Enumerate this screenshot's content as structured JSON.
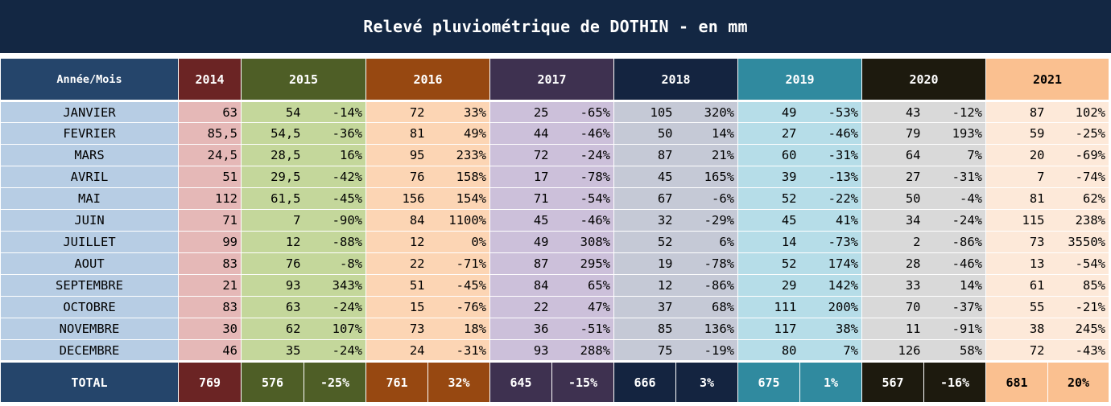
{
  "title": "Relevé pluviométrique de DOTHIN - en mm",
  "corner_label": "Année/Mois",
  "total_label": "TOTAL",
  "years": [
    "2014",
    "2015",
    "2016",
    "2017",
    "2018",
    "2019",
    "2020",
    "2021"
  ],
  "colors": {
    "title_bg": "#132743",
    "header": {
      "2014": "#6b2424",
      "2015": "#4e5e26",
      "2016": "#974811",
      "2017": "#3e3150",
      "2018": "#142440",
      "2019": "#308a9f",
      "2020": "#1d1a0e",
      "2021": "#fac090"
    },
    "body": {
      "2014": "#e5b8b7",
      "2015": "#c4d79b",
      "2016": "#fcd5b4",
      "2017": "#ccc0da",
      "2018": "#c5c9d6",
      "2019": "#b6dde8",
      "2020": "#d9d9d9",
      "2021": "#fde9d9"
    },
    "month_col": "#b7cde4"
  },
  "rows": [
    {
      "month": "JANVIER",
      "y2014": "63",
      "y2015": "54",
      "p2015": "-14%",
      "y2016": "72",
      "p2016": "33%",
      "y2017": "25",
      "p2017": "-65%",
      "y2018": "105",
      "p2018": "320%",
      "y2019": "49",
      "p2019": "-53%",
      "y2020": "43",
      "p2020": "-12%",
      "y2021": "87",
      "p2021": "102%"
    },
    {
      "month": "FEVRIER",
      "y2014": "85,5",
      "y2015": "54,5",
      "p2015": "-36%",
      "y2016": "81",
      "p2016": "49%",
      "y2017": "44",
      "p2017": "-46%",
      "y2018": "50",
      "p2018": "14%",
      "y2019": "27",
      "p2019": "-46%",
      "y2020": "79",
      "p2020": "193%",
      "y2021": "59",
      "p2021": "-25%"
    },
    {
      "month": "MARS",
      "y2014": "24,5",
      "y2015": "28,5",
      "p2015": "16%",
      "y2016": "95",
      "p2016": "233%",
      "y2017": "72",
      "p2017": "-24%",
      "y2018": "87",
      "p2018": "21%",
      "y2019": "60",
      "p2019": "-31%",
      "y2020": "64",
      "p2020": "7%",
      "y2021": "20",
      "p2021": "-69%"
    },
    {
      "month": "AVRIL",
      "y2014": "51",
      "y2015": "29,5",
      "p2015": "-42%",
      "y2016": "76",
      "p2016": "158%",
      "y2017": "17",
      "p2017": "-78%",
      "y2018": "45",
      "p2018": "165%",
      "y2019": "39",
      "p2019": "-13%",
      "y2020": "27",
      "p2020": "-31%",
      "y2021": "7",
      "p2021": "-74%"
    },
    {
      "month": "MAI",
      "y2014": "112",
      "y2015": "61,5",
      "p2015": "-45%",
      "y2016": "156",
      "p2016": "154%",
      "y2017": "71",
      "p2017": "-54%",
      "y2018": "67",
      "p2018": "-6%",
      "y2019": "52",
      "p2019": "-22%",
      "y2020": "50",
      "p2020": "-4%",
      "y2021": "81",
      "p2021": "62%"
    },
    {
      "month": "JUIN",
      "y2014": "71",
      "y2015": "7",
      "p2015": "-90%",
      "y2016": "84",
      "p2016": "1100%",
      "y2017": "45",
      "p2017": "-46%",
      "y2018": "32",
      "p2018": "-29%",
      "y2019": "45",
      "p2019": "41%",
      "y2020": "34",
      "p2020": "-24%",
      "y2021": "115",
      "p2021": "238%"
    },
    {
      "month": "JUILLET",
      "y2014": "99",
      "y2015": "12",
      "p2015": "-88%",
      "y2016": "12",
      "p2016": "0%",
      "y2017": "49",
      "p2017": "308%",
      "y2018": "52",
      "p2018": "6%",
      "y2019": "14",
      "p2019": "-73%",
      "y2020": "2",
      "p2020": "-86%",
      "y2021": "73",
      "p2021": "3550%"
    },
    {
      "month": "AOUT",
      "y2014": "83",
      "y2015": "76",
      "p2015": "-8%",
      "y2016": "22",
      "p2016": "-71%",
      "y2017": "87",
      "p2017": "295%",
      "y2018": "19",
      "p2018": "-78%",
      "y2019": "52",
      "p2019": "174%",
      "y2020": "28",
      "p2020": "-46%",
      "y2021": "13",
      "p2021": "-54%"
    },
    {
      "month": "SEPTEMBRE",
      "y2014": "21",
      "y2015": "93",
      "p2015": "343%",
      "y2016": "51",
      "p2016": "-45%",
      "y2017": "84",
      "p2017": "65%",
      "y2018": "12",
      "p2018": "-86%",
      "y2019": "29",
      "p2019": "142%",
      "y2020": "33",
      "p2020": "14%",
      "y2021": "61",
      "p2021": "85%"
    },
    {
      "month": "OCTOBRE",
      "y2014": "83",
      "y2015": "63",
      "p2015": "-24%",
      "y2016": "15",
      "p2016": "-76%",
      "y2017": "22",
      "p2017": "47%",
      "y2018": "37",
      "p2018": "68%",
      "y2019": "111",
      "p2019": "200%",
      "y2020": "70",
      "p2020": "-37%",
      "y2021": "55",
      "p2021": "-21%"
    },
    {
      "month": "NOVEMBRE",
      "y2014": "30",
      "y2015": "62",
      "p2015": "107%",
      "y2016": "73",
      "p2016": "18%",
      "y2017": "36",
      "p2017": "-51%",
      "y2018": "85",
      "p2018": "136%",
      "y2019": "117",
      "p2019": "38%",
      "y2020": "11",
      "p2020": "-91%",
      "y2021": "38",
      "p2021": "245%"
    },
    {
      "month": "DECEMBRE",
      "y2014": "46",
      "y2015": "35",
      "p2015": "-24%",
      "y2016": "24",
      "p2016": "-31%",
      "y2017": "93",
      "p2017": "288%",
      "y2018": "75",
      "p2018": "-19%",
      "y2019": "80",
      "p2019": "7%",
      "y2020": "126",
      "p2020": "58%",
      "y2021": "72",
      "p2021": "-43%"
    }
  ],
  "totals": {
    "y2014": "769",
    "y2015": "576",
    "p2015": "-25%",
    "y2016": "761",
    "p2016": "32%",
    "y2017": "645",
    "p2017": "-15%",
    "y2018": "666",
    "p2018": "3%",
    "y2019": "675",
    "p2019": "1%",
    "y2020": "567",
    "p2020": "-16%",
    "y2021": "681",
    "p2021": "20%"
  }
}
